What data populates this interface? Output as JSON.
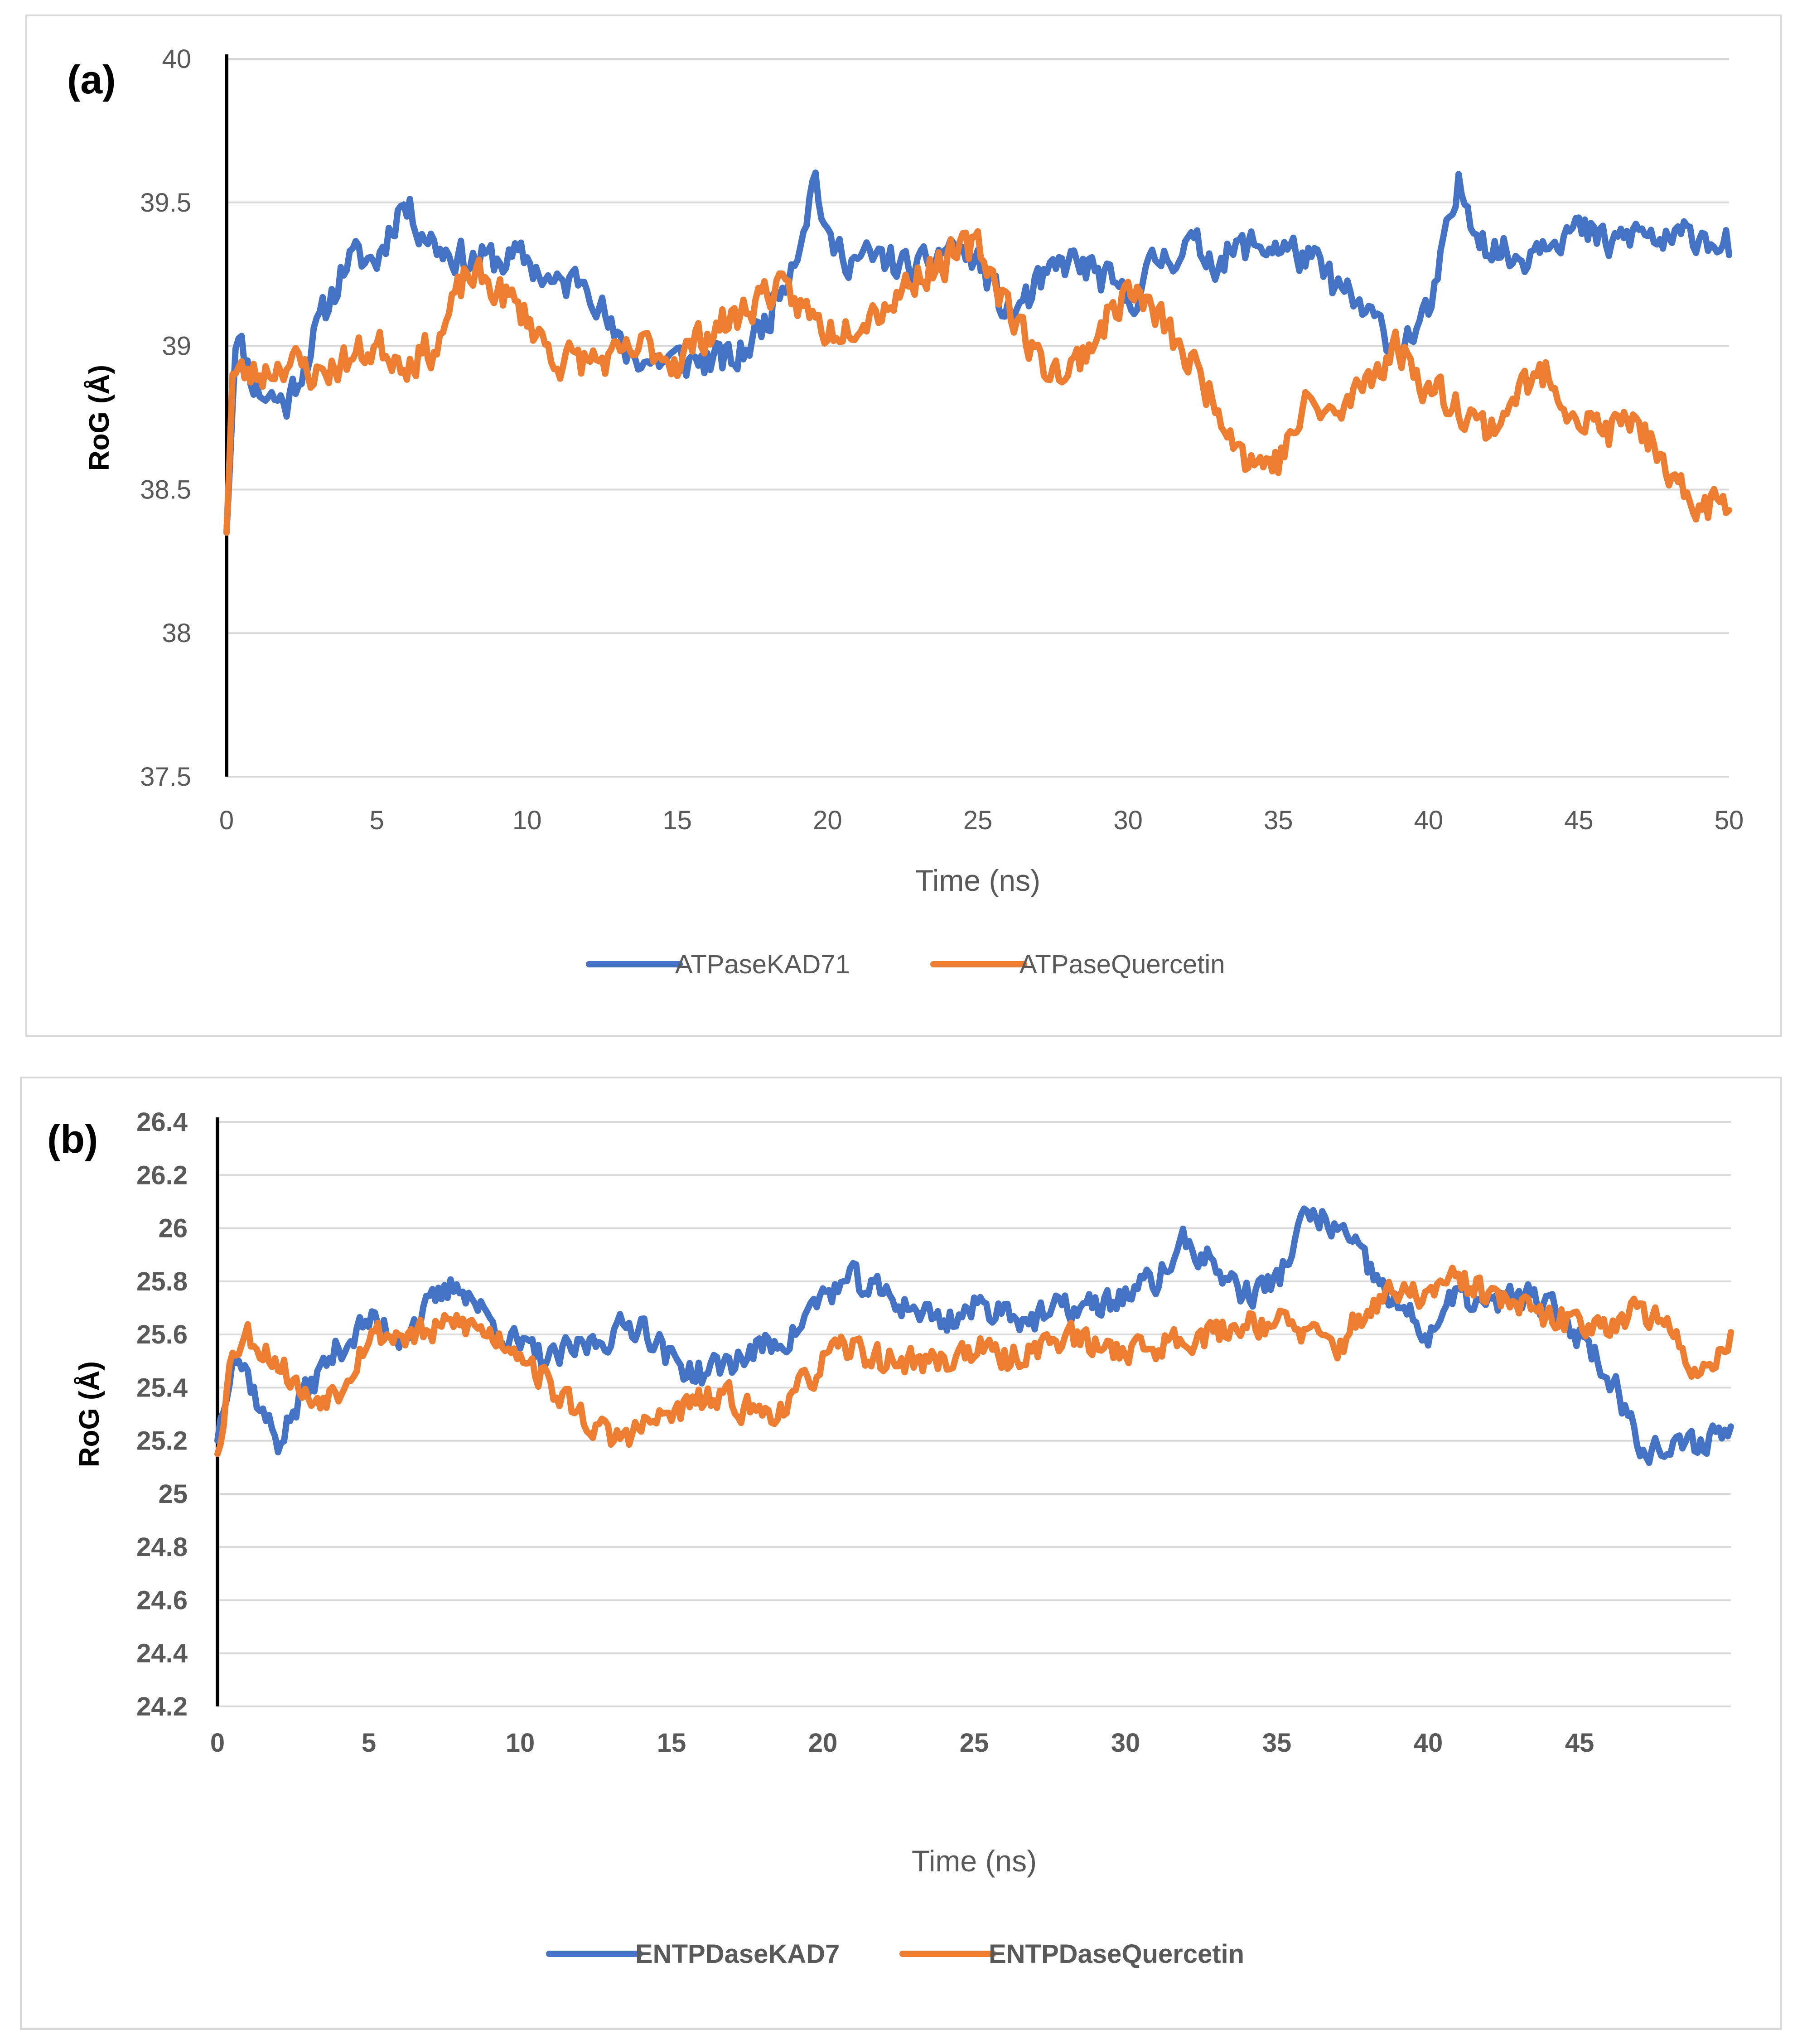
{
  "colors": {
    "series1": "#4472c4",
    "series2": "#ed7d31",
    "grid": "#d9d9d9",
    "tick": "#595959"
  },
  "chart_data": [
    {
      "type": "line",
      "panel_label": "(a)",
      "xlabel": "Time (ns)",
      "ylabel": "RoG (Å)",
      "xlim": [
        0,
        50
      ],
      "ylim": [
        37.5,
        40
      ],
      "x_ticks": [
        0,
        5,
        10,
        15,
        20,
        25,
        30,
        35,
        40,
        45,
        50
      ],
      "y_ticks": [
        37.5,
        38,
        38.5,
        39,
        39.5,
        40
      ],
      "legend_position": "bottom",
      "legend_bold": false,
      "series": [
        {
          "name": "ATPaseKAD71",
          "color": "#4472c4",
          "anchors": [
            [
              0,
              38.35
            ],
            [
              0.3,
              39.05
            ],
            [
              1,
              38.85
            ],
            [
              2,
              38.8
            ],
            [
              3,
              39.05
            ],
            [
              4,
              39.3
            ],
            [
              5,
              39.3
            ],
            [
              5.8,
              39.5
            ],
            [
              7,
              39.35
            ],
            [
              8,
              39.3
            ],
            [
              9,
              39.3
            ],
            [
              10,
              39.3
            ],
            [
              11,
              39.2
            ],
            [
              12,
              39.25
            ],
            [
              13,
              39.0
            ],
            [
              14,
              38.95
            ],
            [
              15,
              38.95
            ],
            [
              16,
              38.95
            ],
            [
              17,
              38.95
            ],
            [
              18,
              39.1
            ],
            [
              19,
              39.35
            ],
            [
              19.6,
              39.6
            ],
            [
              20,
              39.35
            ],
            [
              21,
              39.3
            ],
            [
              22,
              39.3
            ],
            [
              23,
              39.25
            ],
            [
              24,
              39.35
            ],
            [
              25,
              39.3
            ],
            [
              26,
              39.1
            ],
            [
              27,
              39.2
            ],
            [
              28,
              39.3
            ],
            [
              29,
              39.25
            ],
            [
              30,
              39.15
            ],
            [
              31,
              39.3
            ],
            [
              32,
              39.35
            ],
            [
              33,
              39.3
            ],
            [
              34,
              39.35
            ],
            [
              35,
              39.35
            ],
            [
              36,
              39.3
            ],
            [
              37,
              39.2
            ],
            [
              38,
              39.1
            ],
            [
              39,
              39.0
            ],
            [
              40,
              39.1
            ],
            [
              41,
              39.55
            ],
            [
              42,
              39.35
            ],
            [
              43,
              39.3
            ],
            [
              44,
              39.4
            ],
            [
              45,
              39.4
            ],
            [
              46,
              39.35
            ],
            [
              47,
              39.4
            ],
            [
              48,
              39.35
            ],
            [
              49,
              39.4
            ],
            [
              50,
              39.35
            ]
          ],
          "noise": 0.09,
          "seed": 11
        },
        {
          "name": "ATPaseQuercetin",
          "color": "#ed7d31",
          "anchors": [
            [
              0,
              38.35
            ],
            [
              0.2,
              38.9
            ],
            [
              1,
              38.9
            ],
            [
              2,
              38.95
            ],
            [
              3,
              38.9
            ],
            [
              4,
              38.95
            ],
            [
              5,
              39.0
            ],
            [
              6,
              38.95
            ],
            [
              7,
              39.0
            ],
            [
              8,
              39.25
            ],
            [
              9,
              39.2
            ],
            [
              10,
              39.1
            ],
            [
              11,
              38.95
            ],
            [
              12,
              38.95
            ],
            [
              13,
              38.95
            ],
            [
              14,
              39.0
            ],
            [
              15,
              38.95
            ],
            [
              16,
              39.05
            ],
            [
              17,
              39.1
            ],
            [
              18,
              39.2
            ],
            [
              19,
              39.15
            ],
            [
              20,
              39.05
            ],
            [
              21,
              39.1
            ],
            [
              22,
              39.15
            ],
            [
              23,
              39.25
            ],
            [
              24,
              39.3
            ],
            [
              25,
              39.35
            ],
            [
              26,
              39.15
            ],
            [
              27,
              38.95
            ],
            [
              28,
              38.9
            ],
            [
              29,
              39.05
            ],
            [
              30,
              39.2
            ],
            [
              31,
              39.1
            ],
            [
              32,
              38.95
            ],
            [
              33,
              38.8
            ],
            [
              34,
              38.6
            ],
            [
              35,
              38.6
            ],
            [
              36,
              38.8
            ],
            [
              37,
              38.75
            ],
            [
              38,
              38.9
            ],
            [
              39,
              39.0
            ],
            [
              40,
              38.85
            ],
            [
              41,
              38.8
            ],
            [
              42,
              38.7
            ],
            [
              43,
              38.85
            ],
            [
              44,
              38.9
            ],
            [
              45,
              38.75
            ],
            [
              46,
              38.7
            ],
            [
              47,
              38.75
            ],
            [
              48,
              38.5
            ],
            [
              49,
              38.45
            ],
            [
              50,
              38.45
            ]
          ],
          "noise": 0.09,
          "seed": 23
        }
      ]
    },
    {
      "type": "line",
      "panel_label": "(b)",
      "xlabel": "Time (ns)",
      "ylabel": "RoG (Å)",
      "xlim": [
        0,
        50
      ],
      "ylim": [
        24.2,
        26.4
      ],
      "x_ticks": [
        0,
        5,
        10,
        15,
        20,
        25,
        30,
        35,
        40,
        45
      ],
      "y_ticks": [
        24.2,
        24.4,
        24.6,
        24.8,
        25,
        25.2,
        25.4,
        25.6,
        25.8,
        26,
        26.2,
        26.4
      ],
      "legend_position": "bottom",
      "legend_bold": true,
      "series": [
        {
          "name": "ENTPDaseKAD7",
          "color": "#4472c4",
          "anchors": [
            [
              0,
              25.2
            ],
            [
              0.5,
              25.55
            ],
            [
              1,
              25.45
            ],
            [
              1.5,
              25.3
            ],
            [
              2,
              25.2
            ],
            [
              3,
              25.4
            ],
            [
              4,
              25.55
            ],
            [
              5,
              25.65
            ],
            [
              6,
              25.6
            ],
            [
              7,
              25.7
            ],
            [
              8,
              25.8
            ],
            [
              9,
              25.65
            ],
            [
              10,
              25.55
            ],
            [
              11,
              25.5
            ],
            [
              12,
              25.55
            ],
            [
              13,
              25.6
            ],
            [
              14,
              25.65
            ],
            [
              15,
              25.5
            ],
            [
              16,
              25.45
            ],
            [
              17,
              25.5
            ],
            [
              18,
              25.55
            ],
            [
              19,
              25.6
            ],
            [
              20,
              25.75
            ],
            [
              21,
              25.8
            ],
            [
              22,
              25.75
            ],
            [
              23,
              25.7
            ],
            [
              24,
              25.65
            ],
            [
              25,
              25.7
            ],
            [
              26,
              25.7
            ],
            [
              27,
              25.65
            ],
            [
              28,
              25.7
            ],
            [
              29,
              25.7
            ],
            [
              30,
              25.75
            ],
            [
              31,
              25.8
            ],
            [
              32,
              25.95
            ],
            [
              33,
              25.85
            ],
            [
              34,
              25.75
            ],
            [
              35,
              25.8
            ],
            [
              36,
              26.05
            ],
            [
              37,
              26.0
            ],
            [
              38,
              25.85
            ],
            [
              39,
              25.7
            ],
            [
              40,
              25.6
            ],
            [
              41,
              25.75
            ],
            [
              42,
              25.7
            ],
            [
              43,
              25.75
            ],
            [
              44,
              25.7
            ],
            [
              45,
              25.6
            ],
            [
              46,
              25.45
            ],
            [
              47,
              25.2
            ],
            [
              48,
              25.15
            ],
            [
              49,
              25.2
            ],
            [
              50,
              25.25
            ]
          ],
          "noise": 0.08,
          "seed": 37
        },
        {
          "name": "ENTPDaseQuercetin",
          "color": "#ed7d31",
          "anchors": [
            [
              0,
              25.15
            ],
            [
              0.5,
              25.55
            ],
            [
              1,
              25.6
            ],
            [
              2,
              25.5
            ],
            [
              3,
              25.35
            ],
            [
              4,
              25.4
            ],
            [
              5,
              25.6
            ],
            [
              6,
              25.6
            ],
            [
              7,
              25.6
            ],
            [
              8,
              25.65
            ],
            [
              9,
              25.6
            ],
            [
              10,
              25.55
            ],
            [
              11,
              25.4
            ],
            [
              12,
              25.3
            ],
            [
              13,
              25.2
            ],
            [
              14,
              25.25
            ],
            [
              15,
              25.3
            ],
            [
              16,
              25.35
            ],
            [
              17,
              25.35
            ],
            [
              18,
              25.3
            ],
            [
              19,
              25.35
            ],
            [
              20,
              25.5
            ],
            [
              21,
              25.55
            ],
            [
              22,
              25.5
            ],
            [
              23,
              25.5
            ],
            [
              24,
              25.5
            ],
            [
              25,
              25.55
            ],
            [
              26,
              25.5
            ],
            [
              27,
              25.55
            ],
            [
              28,
              25.6
            ],
            [
              29,
              25.55
            ],
            [
              30,
              25.55
            ],
            [
              31,
              25.55
            ],
            [
              32,
              25.6
            ],
            [
              33,
              25.6
            ],
            [
              34,
              25.65
            ],
            [
              35,
              25.65
            ],
            [
              36,
              25.6
            ],
            [
              37,
              25.55
            ],
            [
              38,
              25.7
            ],
            [
              39,
              25.75
            ],
            [
              40,
              25.75
            ],
            [
              41,
              25.8
            ],
            [
              42,
              25.75
            ],
            [
              43,
              25.7
            ],
            [
              44,
              25.65
            ],
            [
              45,
              25.65
            ],
            [
              46,
              25.65
            ],
            [
              47,
              25.7
            ],
            [
              48,
              25.6
            ],
            [
              49,
              25.45
            ],
            [
              50,
              25.6
            ]
          ],
          "noise": 0.08,
          "seed": 53
        }
      ]
    }
  ]
}
